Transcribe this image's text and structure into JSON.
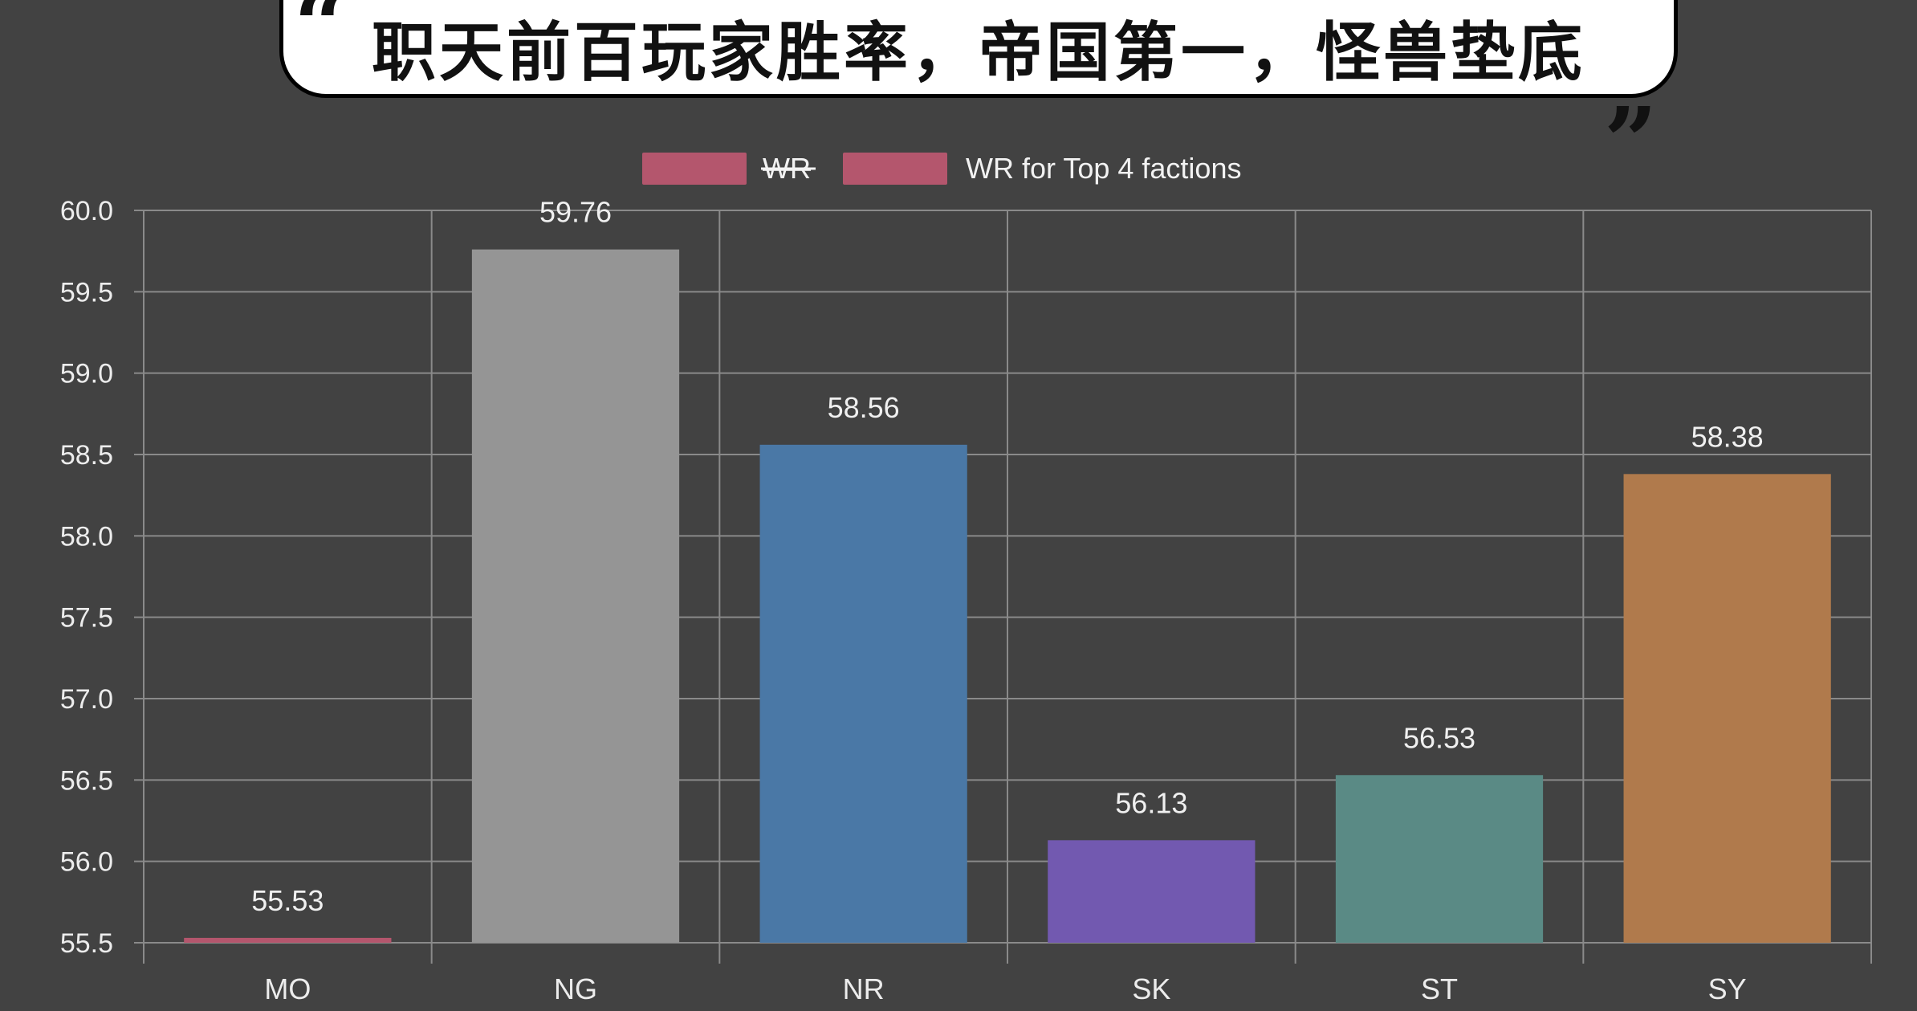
{
  "headline": {
    "text": "职天前百玩家胜率，帝国第一，怪兽垫底",
    "open_quote": "“",
    "close_quote": "„"
  },
  "chart_data": {
    "type": "bar",
    "categories": [
      "MO",
      "NG",
      "NR",
      "SK",
      "ST",
      "SY"
    ],
    "values": [
      55.53,
      59.76,
      58.56,
      56.13,
      56.53,
      58.38
    ],
    "data_labels": [
      "55.53",
      "59.76",
      "58.56",
      "56.13",
      "56.53",
      "58.38"
    ],
    "colors": [
      "#b4566d",
      "#959595",
      "#4a78a6",
      "#7259b0",
      "#5a8a85",
      "#b07a4c"
    ],
    "legend": [
      {
        "label": "WR",
        "color": "#b4566d",
        "struck": true
      },
      {
        "label": "WR for Top 4 factions",
        "color": "#b4566d",
        "struck": false
      }
    ],
    "legend_position": "top",
    "ylim": [
      55.5,
      60.0
    ],
    "yticks": [
      "60.0",
      "59.5",
      "59.0",
      "58.5",
      "58.0",
      "57.5",
      "57.0",
      "56.5",
      "56.0",
      "55.5"
    ],
    "grid": true,
    "grid_color": "#8a8a8a",
    "background": "#424242"
  }
}
